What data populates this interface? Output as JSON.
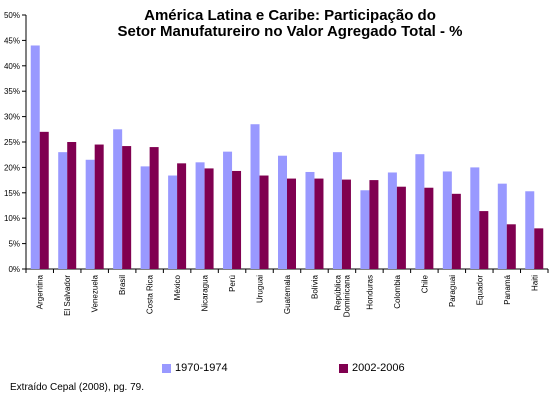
{
  "chart_data": {
    "type": "bar",
    "title_lines": [
      "América Latina e Caribe: Participação do",
      "Setor Manufatureiro no Valor Agregado Total - %"
    ],
    "categories": [
      "Argentina",
      "El Salvador",
      "Venezuela",
      "Brasil",
      "Costa Rica",
      "México",
      "Nicaragua",
      "Perú",
      "Uruguai",
      "Guatemala",
      "Bolívia",
      "República Dominicana",
      "Honduras",
      "Colombia",
      "Chile",
      "Paraguai",
      "Equador",
      "Panamá",
      "Haiti"
    ],
    "series": [
      {
        "name": "1970-1974",
        "color": "#9999ff",
        "values": [
          44.0,
          23.0,
          21.5,
          27.5,
          20.2,
          18.4,
          21.0,
          23.1,
          28.5,
          22.3,
          19.1,
          23.0,
          15.5,
          19.0,
          22.6,
          19.2,
          20.0,
          16.8,
          15.3
        ]
      },
      {
        "name": "2002-2006",
        "color": "#800050",
        "values": [
          27.0,
          25.0,
          24.5,
          24.2,
          24.0,
          20.8,
          19.8,
          19.3,
          18.4,
          17.8,
          17.8,
          17.6,
          17.5,
          16.2,
          16.0,
          14.8,
          11.4,
          8.8,
          8.0
        ]
      }
    ],
    "ylim": [
      0,
      50
    ],
    "yticks": [
      "0%",
      "5%",
      "10%",
      "15%",
      "20%",
      "25%",
      "30%",
      "35%",
      "40%",
      "45%",
      "50%"
    ],
    "grid": false,
    "legend_position": "bottom"
  },
  "source_note": "Extraído Cepal (2008), pg. 79."
}
